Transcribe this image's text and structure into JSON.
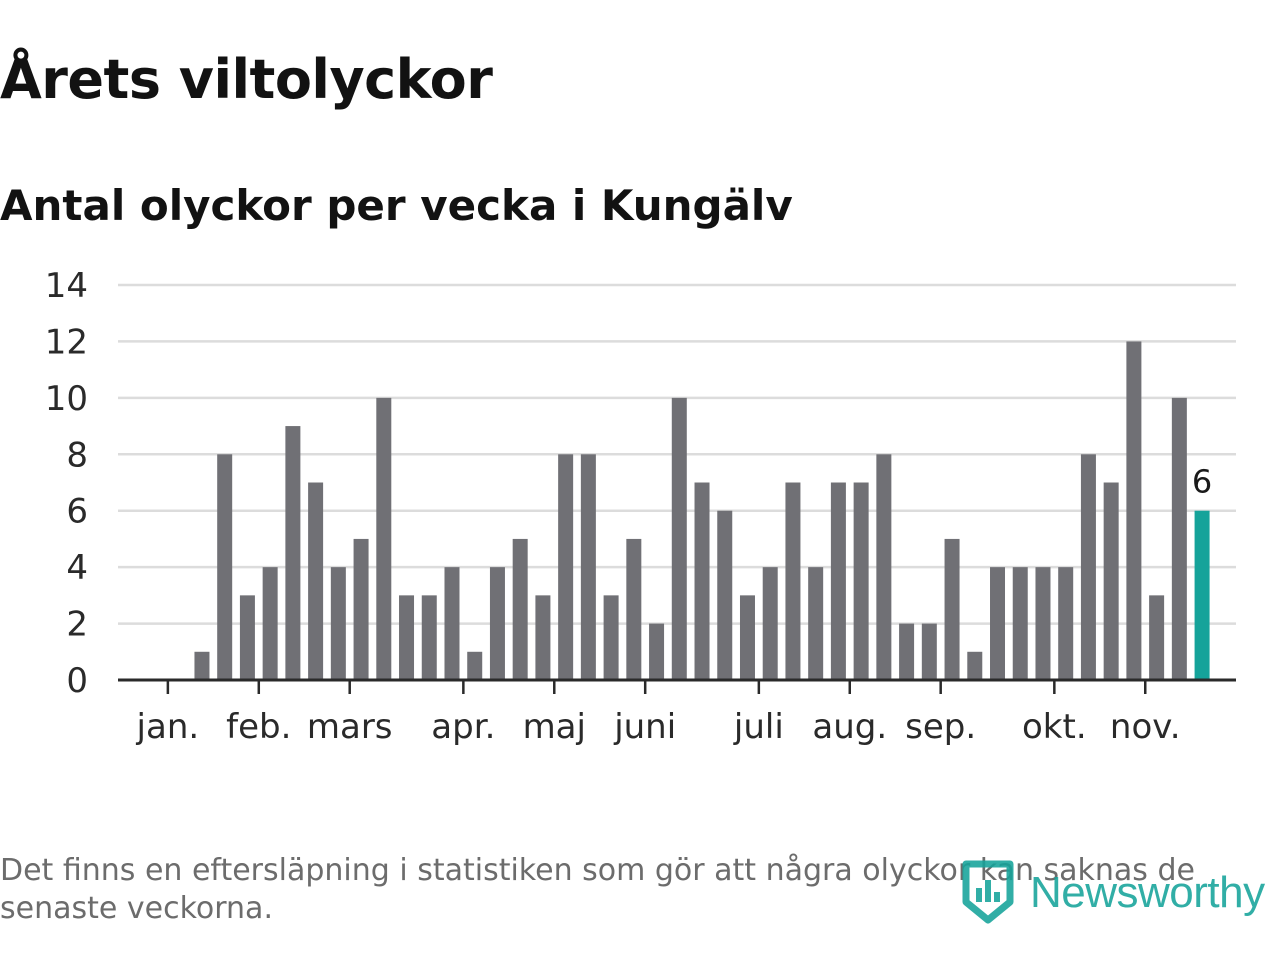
{
  "title": "Årets viltolyckor",
  "subtitle": "Antal olyckor per vecka i Kungälv",
  "note": "Det finns en eftersläpning i statistiken som gör att några olyckor kan saknas de senaste veckorna.",
  "brand": {
    "name": "Newsworthy",
    "icon": "bar-chart-badge-icon"
  },
  "colors": {
    "bar": "#707075",
    "highlight": "#15a39a",
    "grid": "#dcdcdc",
    "axis": "#2a2a2a",
    "tick_label": "#2a2a2a",
    "brand": "#15a39a"
  },
  "chart_data": {
    "type": "bar",
    "title": "Antal olyckor per vecka i Kungälv",
    "xlabel": "",
    "ylabel": "",
    "ylim": [
      0,
      14
    ],
    "yticks": [
      0,
      2,
      4,
      6,
      8,
      10,
      12,
      14
    ],
    "grid": true,
    "weeks": [
      1,
      2,
      3,
      4,
      5,
      6,
      7,
      8,
      9,
      10,
      11,
      12,
      13,
      14,
      15,
      16,
      17,
      18,
      19,
      20,
      21,
      22,
      23,
      24,
      25,
      26,
      27,
      28,
      29,
      30,
      31,
      32,
      33,
      34,
      35,
      36,
      37,
      38,
      39,
      40,
      41,
      42,
      43,
      44,
      45,
      46,
      47
    ],
    "values": [
      null,
      null,
      1,
      8,
      3,
      4,
      9,
      7,
      4,
      5,
      10,
      3,
      3,
      4,
      1,
      4,
      5,
      3,
      8,
      8,
      3,
      5,
      2,
      10,
      7,
      6,
      3,
      4,
      7,
      4,
      7,
      7,
      8,
      2,
      2,
      5,
      1,
      4,
      4,
      4,
      4,
      8,
      7,
      12,
      3,
      10,
      6
    ],
    "highlight_index": 46,
    "highlight_label": "6",
    "month_ticks": [
      {
        "label": "jan.",
        "week": 1.5
      },
      {
        "label": "feb.",
        "week": 5.5
      },
      {
        "label": "mars",
        "week": 9.5
      },
      {
        "label": "apr.",
        "week": 14.5
      },
      {
        "label": "maj",
        "week": 18.5
      },
      {
        "label": "juni",
        "week": 22.5
      },
      {
        "label": "juli",
        "week": 27.5
      },
      {
        "label": "aug.",
        "week": 31.5
      },
      {
        "label": "sep.",
        "week": 35.5
      },
      {
        "label": "okt.",
        "week": 40.5
      },
      {
        "label": "nov.",
        "week": 44.5
      }
    ]
  }
}
